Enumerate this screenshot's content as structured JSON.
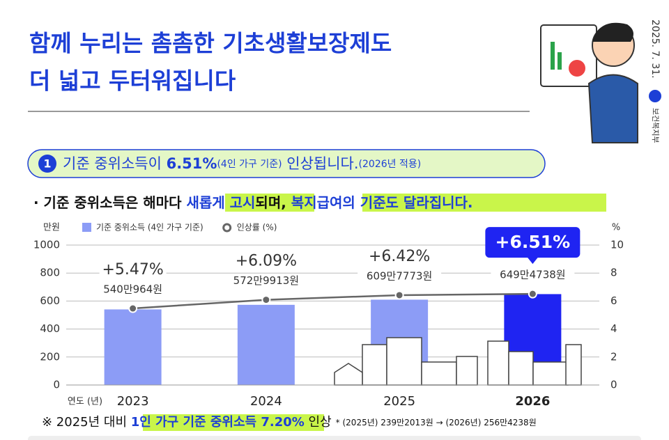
{
  "date": "2025. 7. 31.",
  "ministry": "보건복지부",
  "title": [
    "함께 누리는 촘촘한 기초생활보장제도",
    "더 넓고 두터워집니다"
  ],
  "subtitle": {
    "number": "1",
    "parts": [
      "기준 중위소득이 ",
      "6.51%",
      "(4인 가구 기준)",
      " 인상됩니다.",
      "(2026년 적용)"
    ]
  },
  "bullet": {
    "parts": [
      "· 기준 중위소득은 해마다 ",
      "새롭게 고시",
      "되며, ",
      "복지급여의 기준도 달라집니다."
    ]
  },
  "footnote": {
    "parts": [
      "※ 2025년 대비 ",
      "1인 가구 기준 중위소득 7.20%",
      " 인상",
      "* (2025년) 239만2013원 → (2026년) 256만4238원"
    ]
  },
  "chart_data": {
    "type": "bar",
    "y_label": "만원",
    "y2_label": "%",
    "x_label": "연도 (년)",
    "categories": [
      "2023",
      "2024",
      "2025",
      "2026"
    ],
    "series": [
      {
        "name": "기준 중위소득 (4인 가구 기준)",
        "type": "bar",
        "color": "#8c9cf6",
        "colors": [
          "#8c9cf6",
          "#8c9cf6",
          "#8c9cf6",
          "#1f24f2"
        ],
        "values": [
          540.0964,
          572.9913,
          609.7773,
          649.4738
        ],
        "value_labels": [
          "540만964원",
          "572만9913원",
          "609만7773원",
          "649만4738원"
        ]
      },
      {
        "name": "인상률 (%)",
        "type": "line",
        "axis": "y2",
        "color": "#666666",
        "values": [
          5.47,
          6.09,
          6.42,
          6.51
        ],
        "value_labels": [
          "+5.47%",
          "+6.09%",
          "+6.42%",
          "+6.51%"
        ]
      }
    ],
    "ylim": [
      0,
      1000
    ],
    "yticks": [
      0,
      200,
      400,
      600,
      800,
      1000
    ],
    "y2lim": [
      0,
      10
    ],
    "y2ticks": [
      0,
      2,
      4,
      6,
      8,
      10
    ],
    "grid": true
  }
}
